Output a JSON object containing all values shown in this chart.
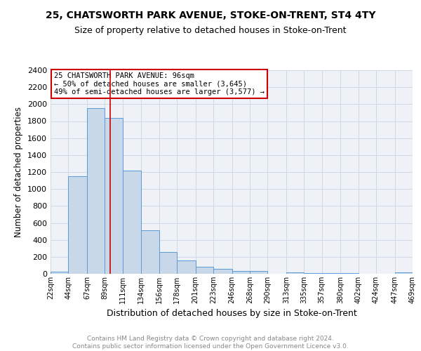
{
  "title": "25, CHATSWORTH PARK AVENUE, STOKE-ON-TRENT, ST4 4TY",
  "subtitle": "Size of property relative to detached houses in Stoke-on-Trent",
  "xlabel": "Distribution of detached houses by size in Stoke-on-Trent",
  "ylabel": "Number of detached properties",
  "footer_line1": "Contains HM Land Registry data © Crown copyright and database right 2024.",
  "footer_line2": "Contains public sector information licensed under the Open Government Licence v3.0.",
  "bar_left_edges": [
    22,
    44,
    67,
    89,
    111,
    134,
    156,
    178,
    201,
    223,
    246,
    268,
    290,
    313,
    335,
    357,
    380,
    402,
    424,
    447
  ],
  "bar_widths": [
    22,
    23,
    22,
    22,
    23,
    22,
    22,
    23,
    22,
    23,
    22,
    22,
    23,
    22,
    22,
    23,
    22,
    22,
    23,
    22
  ],
  "bar_heights": [
    25,
    1150,
    1950,
    1840,
    1220,
    510,
    260,
    155,
    80,
    55,
    35,
    35,
    0,
    20,
    5,
    5,
    5,
    0,
    0,
    20
  ],
  "tick_labels": [
    "22sqm",
    "44sqm",
    "67sqm",
    "89sqm",
    "111sqm",
    "134sqm",
    "156sqm",
    "178sqm",
    "201sqm",
    "223sqm",
    "246sqm",
    "268sqm",
    "290sqm",
    "313sqm",
    "335sqm",
    "357sqm",
    "380sqm",
    "402sqm",
    "424sqm",
    "447sqm",
    "469sqm"
  ],
  "bar_color": "#c8d8e8",
  "bar_edge_color": "#5b9bd5",
  "vline_x": 96,
  "vline_color": "#cc0000",
  "annotation_text": "25 CHATSWORTH PARK AVENUE: 96sqm\n← 50% of detached houses are smaller (3,645)\n49% of semi-detached houses are larger (3,577) →",
  "annotation_box_color": "#ffffff",
  "annotation_box_edge": "#cc0000",
  "ylim": [
    0,
    2400
  ],
  "yticks": [
    0,
    200,
    400,
    600,
    800,
    1000,
    1200,
    1400,
    1600,
    1800,
    2000,
    2200,
    2400
  ],
  "grid_color": "#d0d8e8",
  "background_color": "#eef2f7",
  "title_fontsize": 10,
  "subtitle_fontsize": 9,
  "tick_fontsize": 7,
  "ylabel_fontsize": 8.5,
  "xlabel_fontsize": 9,
  "footer_fontsize": 6.5
}
